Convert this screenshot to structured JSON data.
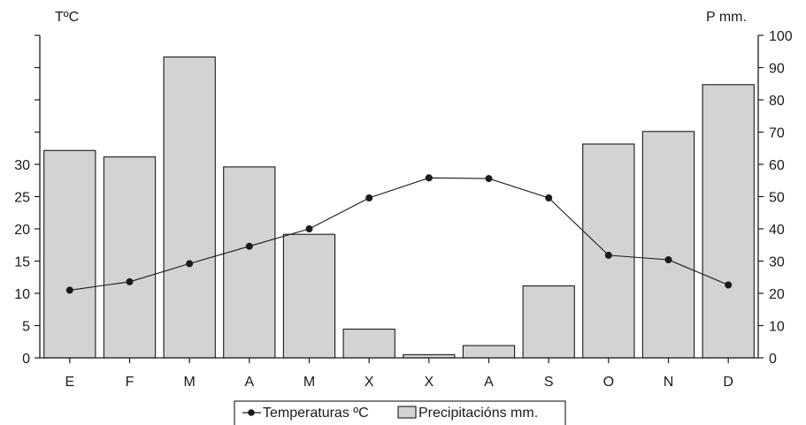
{
  "chart_data": {
    "type": "bar",
    "categories": [
      "E",
      "F",
      "M",
      "A",
      "M",
      "X",
      "X",
      "A",
      "S",
      "O",
      "N",
      "D"
    ],
    "series": [
      {
        "name": "Precipitacións mm.",
        "type": "bar",
        "axis": "right",
        "values": [
          64.3,
          62.3,
          93.3,
          59.2,
          38.3,
          8.9,
          1.0,
          3.8,
          22.3,
          66.3,
          70.2,
          84.7
        ]
      },
      {
        "name": "Temperaturas ºC",
        "type": "line",
        "axis": "left",
        "values": [
          10.5,
          11.8,
          14.6,
          17.3,
          20.0,
          24.8,
          27.9,
          27.8,
          24.8,
          15.9,
          15.2,
          11.3
        ]
      }
    ],
    "left_axis": {
      "label": "TºC",
      "ylim": [
        0,
        50
      ],
      "ticks": [
        0,
        5,
        10,
        15,
        20,
        25,
        30,
        35,
        40,
        45,
        50
      ],
      "tick_labels": [
        "0",
        "5",
        "10",
        "15",
        "20",
        "25",
        "30",
        "",
        "",
        "",
        ""
      ]
    },
    "right_axis": {
      "label": "P mm.",
      "ylim": [
        0,
        100
      ],
      "ticks": [
        0,
        10,
        20,
        30,
        40,
        50,
        60,
        70,
        80,
        90,
        100
      ],
      "tick_labels": [
        "0",
        "10",
        "20",
        "30",
        "40",
        "50",
        "60",
        "70",
        "80",
        "90",
        "100"
      ]
    },
    "legend": {
      "placement": "bottom-center",
      "entries": [
        "Temperaturas ºC",
        "Precipitacións mm."
      ]
    },
    "grid": false,
    "colors": {
      "bar_fill": "#d3d3d5",
      "line": "#1a1a1a",
      "axis": "#1a1a1a"
    }
  }
}
